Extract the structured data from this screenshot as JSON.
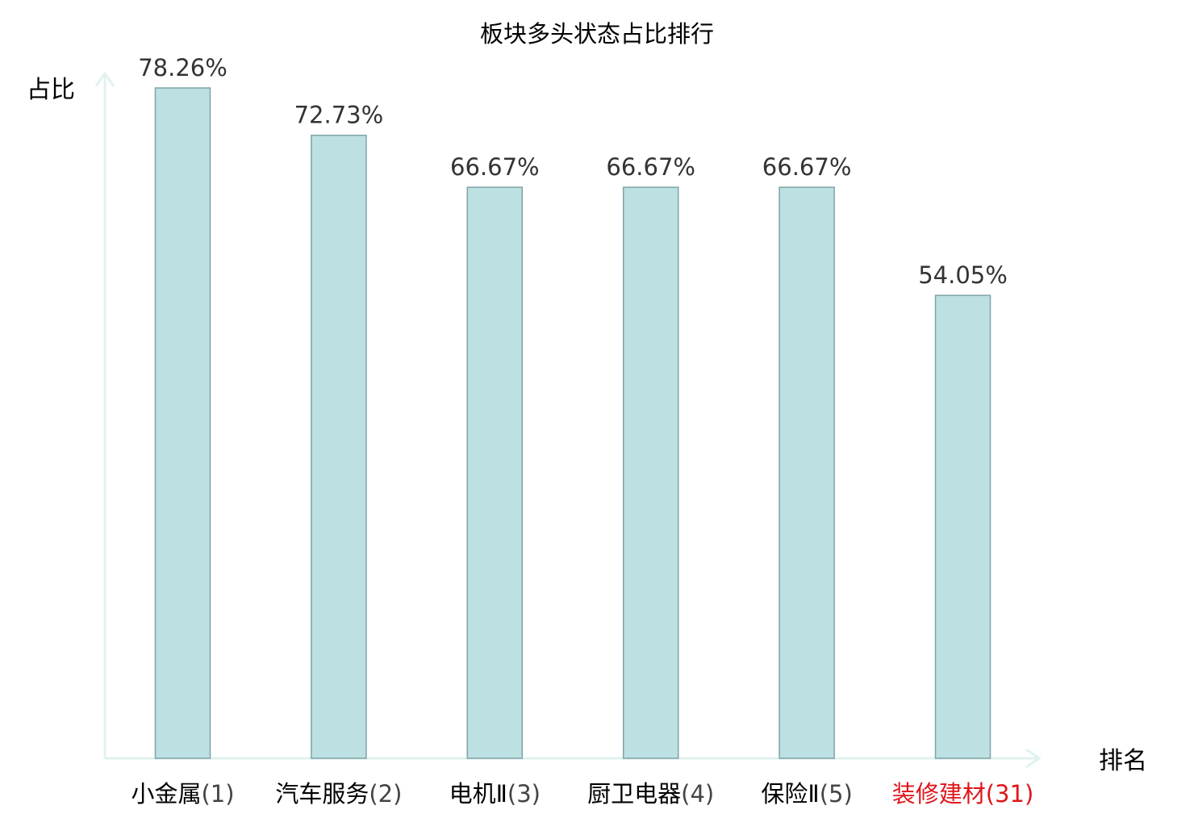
{
  "colors": {
    "bar_fill": "#bde0e2",
    "bar_stroke": "#7fa3a6",
    "axis": "#e0f2ef",
    "text": "#000000",
    "value_label": "#333333",
    "tick_label": "#000000",
    "tick_rank": "#444444",
    "highlight": "#e0161b"
  },
  "chart_data": {
    "type": "bar",
    "title": "板块多头状态占比排行",
    "xlabel": "排名",
    "ylabel": "占比",
    "ylim": [
      0,
      80
    ],
    "grid": false,
    "legend": "none",
    "categories": [
      {
        "name": "小金属",
        "rank": "(1)",
        "highlight": false
      },
      {
        "name": "汽车服务",
        "rank": "(2)",
        "highlight": false
      },
      {
        "name": "电机Ⅱ",
        "rank": "(3)",
        "highlight": false
      },
      {
        "name": "厨卫电器",
        "rank": "(4)",
        "highlight": false
      },
      {
        "name": "保险Ⅱ",
        "rank": "(5)",
        "highlight": false
      },
      {
        "name": "装修建材",
        "rank": "(31)",
        "highlight": true
      }
    ],
    "values": [
      78.26,
      72.73,
      66.67,
      66.67,
      66.67,
      54.05
    ],
    "value_labels": [
      "78.26%",
      "72.73%",
      "66.67%",
      "66.67%",
      "66.67%",
      "54.05%"
    ]
  }
}
